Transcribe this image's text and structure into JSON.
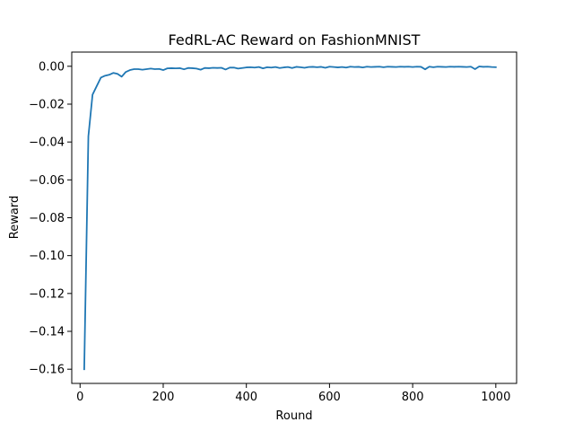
{
  "chart_data": {
    "type": "line",
    "title": "FedRL-AC Reward on FashionMNIST",
    "xlabel": "Round",
    "ylabel": "Reward",
    "xlim": [
      -20,
      1050
    ],
    "ylim": [
      -0.1675,
      0.0075
    ],
    "xticks": [
      0,
      200,
      400,
      600,
      800,
      1000
    ],
    "xtick_labels": [
      "0",
      "200",
      "400",
      "600",
      "800",
      "1000"
    ],
    "yticks": [
      0.0,
      -0.02,
      -0.04,
      -0.06,
      -0.08,
      -0.1,
      -0.12,
      -0.14,
      -0.16
    ],
    "ytick_labels": [
      "0.00",
      "−0.02",
      "−0.04",
      "−0.06",
      "−0.08",
      "−0.10",
      "−0.12",
      "−0.14",
      "−0.16"
    ],
    "grid": false,
    "series": [
      {
        "name": "reward",
        "color": "#1f77b4",
        "x": [
          10,
          20,
          30,
          40,
          50,
          60,
          70,
          80,
          90,
          100,
          110,
          120,
          130,
          140,
          150,
          160,
          170,
          180,
          190,
          200,
          210,
          220,
          230,
          240,
          250,
          260,
          270,
          280,
          290,
          300,
          310,
          320,
          330,
          340,
          350,
          360,
          370,
          380,
          390,
          400,
          410,
          420,
          430,
          440,
          450,
          460,
          470,
          480,
          490,
          500,
          510,
          520,
          530,
          540,
          550,
          560,
          570,
          580,
          590,
          600,
          610,
          620,
          630,
          640,
          650,
          660,
          670,
          680,
          690,
          700,
          710,
          720,
          730,
          740,
          750,
          760,
          770,
          780,
          790,
          800,
          810,
          820,
          830,
          840,
          850,
          860,
          870,
          880,
          890,
          900,
          910,
          920,
          930,
          940,
          950,
          960,
          970,
          980,
          990,
          1000
        ],
        "values": [
          -0.16,
          -0.037,
          -0.015,
          -0.0105,
          -0.006,
          -0.005,
          -0.0045,
          -0.0035,
          -0.004,
          -0.0055,
          -0.003,
          -0.002,
          -0.0015,
          -0.0015,
          -0.0018,
          -0.0015,
          -0.0012,
          -0.0015,
          -0.0014,
          -0.002,
          -0.0011,
          -0.001,
          -0.0011,
          -0.001,
          -0.0016,
          -0.0009,
          -0.001,
          -0.0012,
          -0.0018,
          -0.0009,
          -0.001,
          -0.0008,
          -0.0009,
          -0.0008,
          -0.0017,
          -0.0007,
          -0.0007,
          -0.0012,
          -0.0009,
          -0.0006,
          -0.0005,
          -0.0007,
          -0.0004,
          -0.0011,
          -0.0005,
          -0.0007,
          -0.0004,
          -0.0009,
          -0.0006,
          -0.0004,
          -0.0009,
          -0.0003,
          -0.0005,
          -0.0008,
          -0.0004,
          -0.0003,
          -0.0005,
          -0.0003,
          -0.0008,
          -0.0002,
          -0.0004,
          -0.0006,
          -0.0004,
          -0.0007,
          -0.0002,
          -0.0004,
          -0.0003,
          -0.0006,
          -0.0002,
          -0.0004,
          -0.0003,
          -0.0002,
          -0.0005,
          -0.0002,
          -0.0003,
          -0.0004,
          -0.0002,
          -0.0003,
          -0.0002,
          -0.0004,
          -0.0002,
          -0.0003,
          -0.0016,
          -0.0002,
          -0.0005,
          -0.0002,
          -0.0003,
          -0.0004,
          -0.0002,
          -0.0003,
          -0.0002,
          -0.0003,
          -0.0004,
          -0.0002,
          -0.0015,
          -0.0001,
          -0.0003,
          -0.0002,
          -0.0004,
          -0.0005
        ]
      }
    ]
  }
}
